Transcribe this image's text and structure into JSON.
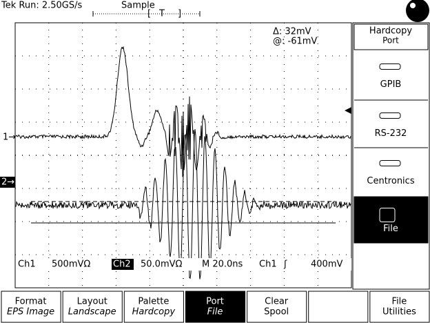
{
  "header": {
    "status": "Tek Run: 2.50GS/s",
    "mode": "Sample",
    "trigger_marker": "T"
  },
  "cursor_readout": {
    "delta": "Δ: 32mV",
    "at": "@: -61mV"
  },
  "channel_markers": [
    "1→",
    "2→"
  ],
  "status_line": {
    "ch1": "Ch1",
    "ch1_scale": "500mVΩ",
    "ch2": "Ch2",
    "ch2_scale": "50.0mVΩ",
    "timebase": "M 20.0ns",
    "trigger_source": "Ch1",
    "trigger_slope": "ʃ",
    "trigger_level": "400mV"
  },
  "side_menu": {
    "title": [
      "Hardcopy",
      "Port"
    ],
    "items": [
      "GPIB",
      "RS-232",
      "Centronics",
      "File"
    ]
  },
  "bottom_menu": [
    {
      "label": "Format",
      "value": "EPS Image"
    },
    {
      "label": "Layout",
      "value": "Landscape"
    },
    {
      "label": "Palette",
      "value": "Hardcopy"
    },
    {
      "label": "Port",
      "value": "File"
    },
    {
      "label": "Clear",
      "value": "Spool"
    },
    {
      "label": "File",
      "value": "Utilities"
    }
  ]
}
